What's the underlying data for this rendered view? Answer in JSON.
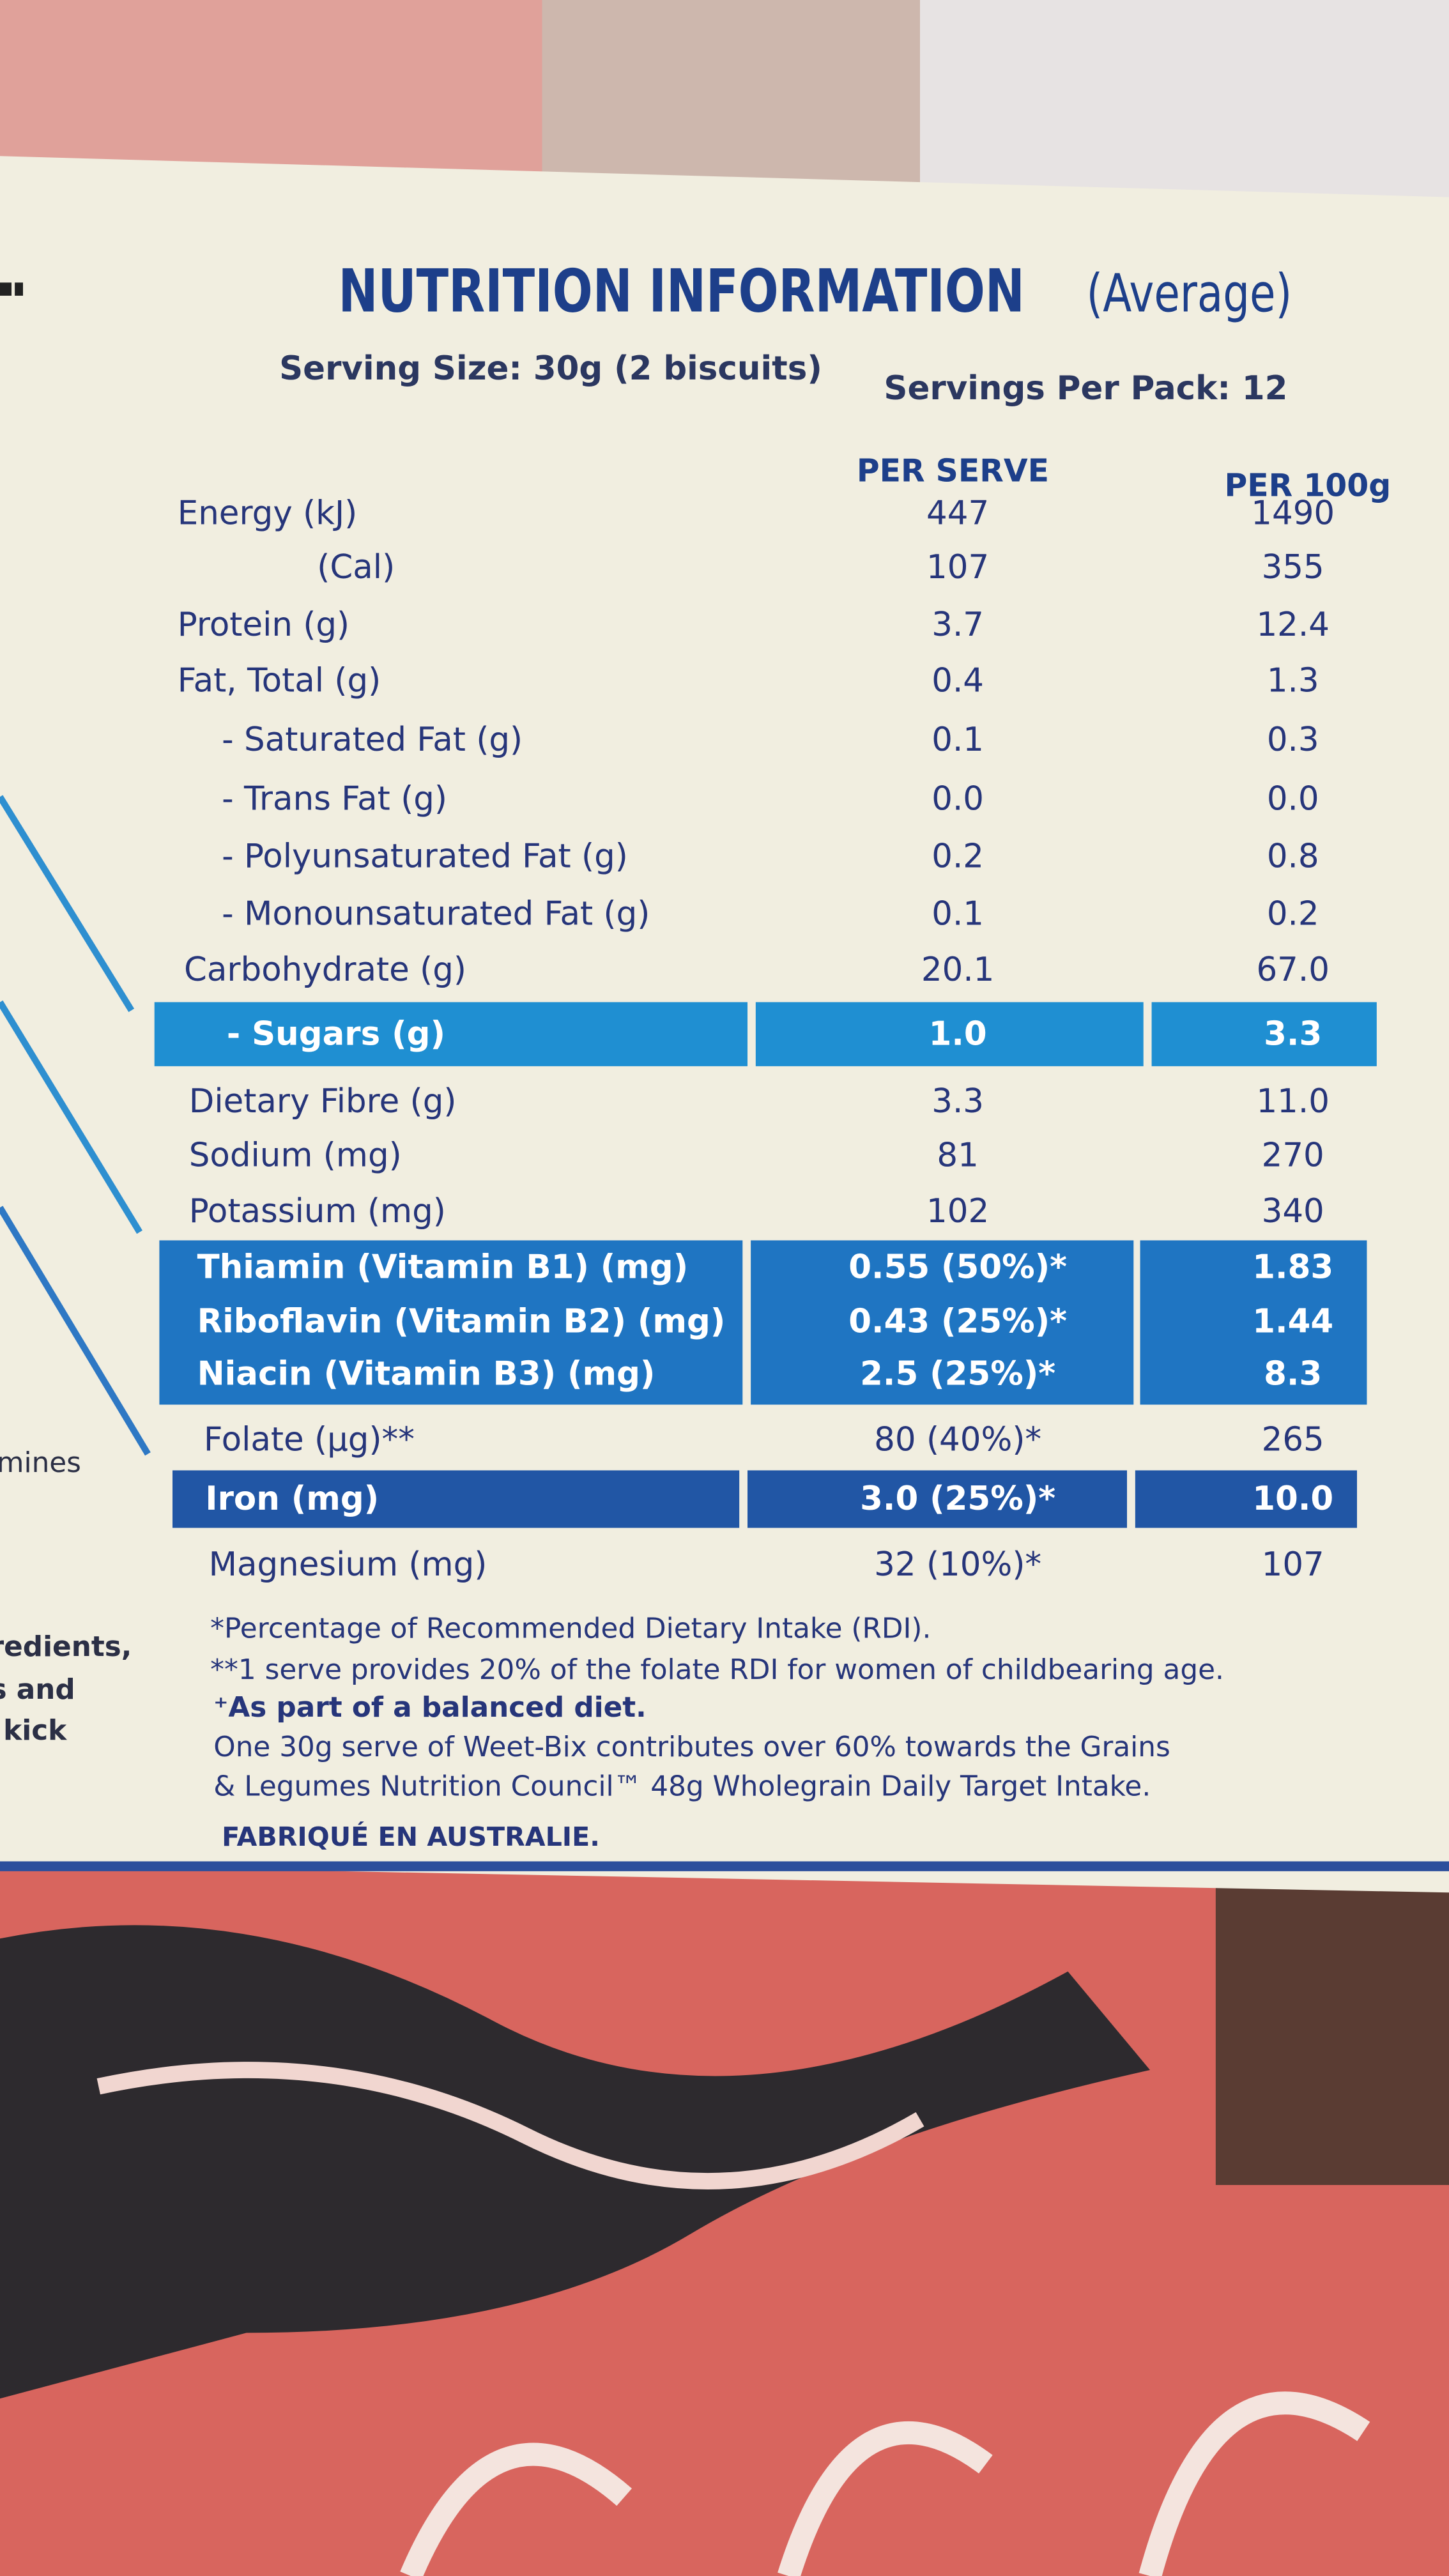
{
  "header": {
    "title": "NUTRITION INFORMATION",
    "title_note": "(Average)",
    "serving_size": "Serving Size: 30g (2 biscuits)",
    "servings_per_pack": "Servings Per Pack: 12"
  },
  "table": {
    "columns": [
      "PER SERVE",
      "PER 100g"
    ],
    "rows": [
      [
        "Energy (kJ)",
        "447",
        "1490"
      ],
      [
        "(Cal)",
        "107",
        "355"
      ],
      [
        "Protein (g)",
        "3.7",
        "12.4"
      ],
      [
        "Fat, Total (g)",
        "0.4",
        "1.3"
      ],
      [
        "- Saturated Fat (g)",
        "0.1",
        "0.3"
      ],
      [
        "- Trans Fat (g)",
        "0.0",
        "0.0"
      ],
      [
        "- Polyunsaturated Fat (g)",
        "0.2",
        "0.8"
      ],
      [
        "- Monounsaturated Fat (g)",
        "0.1",
        "0.2"
      ],
      [
        "Carbohydrate (g)",
        "20.1",
        "67.0"
      ],
      [
        "- Sugars (g)",
        "1.0",
        "3.3"
      ],
      [
        "Dietary Fibre (g)",
        "3.3",
        "11.0"
      ],
      [
        "Sodium (mg)",
        "81",
        "270"
      ],
      [
        "Potassium (mg)",
        "102",
        "340"
      ],
      [
        "Thiamin (Vitamin B1) (mg)",
        "0.55 (50%)*",
        "1.83"
      ],
      [
        "Riboflavin (Vitamin B2) (mg)",
        "0.43 (25%)*",
        "1.44"
      ],
      [
        "Niacin (Vitamin B3) (mg)",
        "2.5 (25%)*",
        "8.3"
      ],
      [
        "Folate (µg)**",
        "80 (40%)*",
        "265"
      ],
      [
        "Iron (mg)",
        "3.0 (25%)*",
        "10.0"
      ],
      [
        "Magnesium (mg)",
        "32 (10%)*",
        "107"
      ]
    ]
  },
  "footnotes": [
    "*Percentage of Recommended Dietary Intake (RDI).",
    "**1 serve provides 20% of the folate RDI for women of childbearing age.",
    "⁺As part of a balanced diet.",
    "One 30g serve of Weet-Bix contributes over 60% towards the Grains",
    "& Legumes Nutrition Council™ 48g Wholegrain Daily Target Intake."
  ],
  "made_in": "FABRIQUÉ EN AUSTRALIE.",
  "side_text": [
    "mines",
    "redients,",
    "s and",
    "kick"
  ]
}
